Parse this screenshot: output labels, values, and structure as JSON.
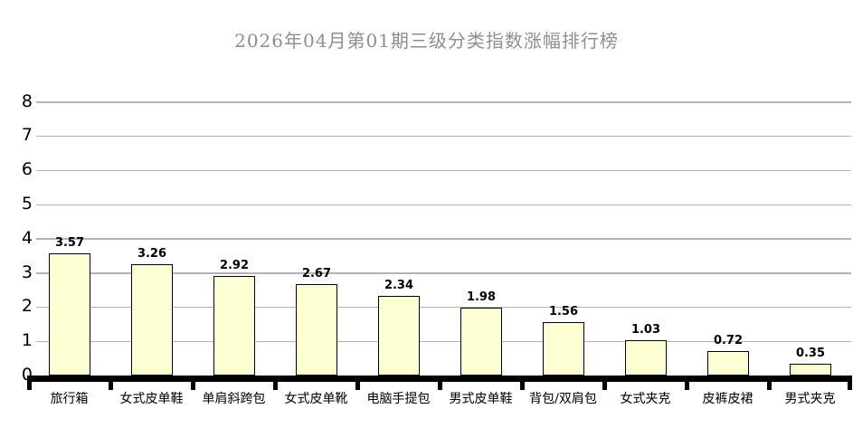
{
  "chart_data": {
    "type": "bar",
    "title": "2026年04月第01期三级分类指数涨幅排行榜",
    "categories": [
      "旅行箱",
      "女式皮单鞋",
      "单肩斜跨包",
      "女式皮单靴",
      "电脑手提包",
      "男式皮单鞋",
      "背包/双肩包",
      "女式夹克",
      "皮裤皮裙",
      "男式夹克"
    ],
    "values": [
      3.57,
      3.26,
      2.92,
      2.67,
      2.34,
      1.98,
      1.56,
      1.03,
      0.72,
      0.35
    ],
    "value_labels": [
      "3.57",
      "3.26",
      "2.92",
      "2.67",
      "2.34",
      "1.98",
      "1.56",
      "1.03",
      "0.72",
      "0.35"
    ],
    "xlabel": "",
    "ylabel": "",
    "ylim": [
      0,
      8
    ],
    "ytick_step": 1,
    "yticks": [
      "0",
      "1",
      "2",
      "3",
      "4",
      "5",
      "6",
      "7",
      "8"
    ],
    "grid": true,
    "legend": null,
    "colors": {
      "bar_fill": "#FEFED3",
      "bar_border": "#000000",
      "gridline": "#b3b3b3",
      "axis": "#000000",
      "title": "#8f8f8f",
      "background": "#ffffff"
    }
  }
}
